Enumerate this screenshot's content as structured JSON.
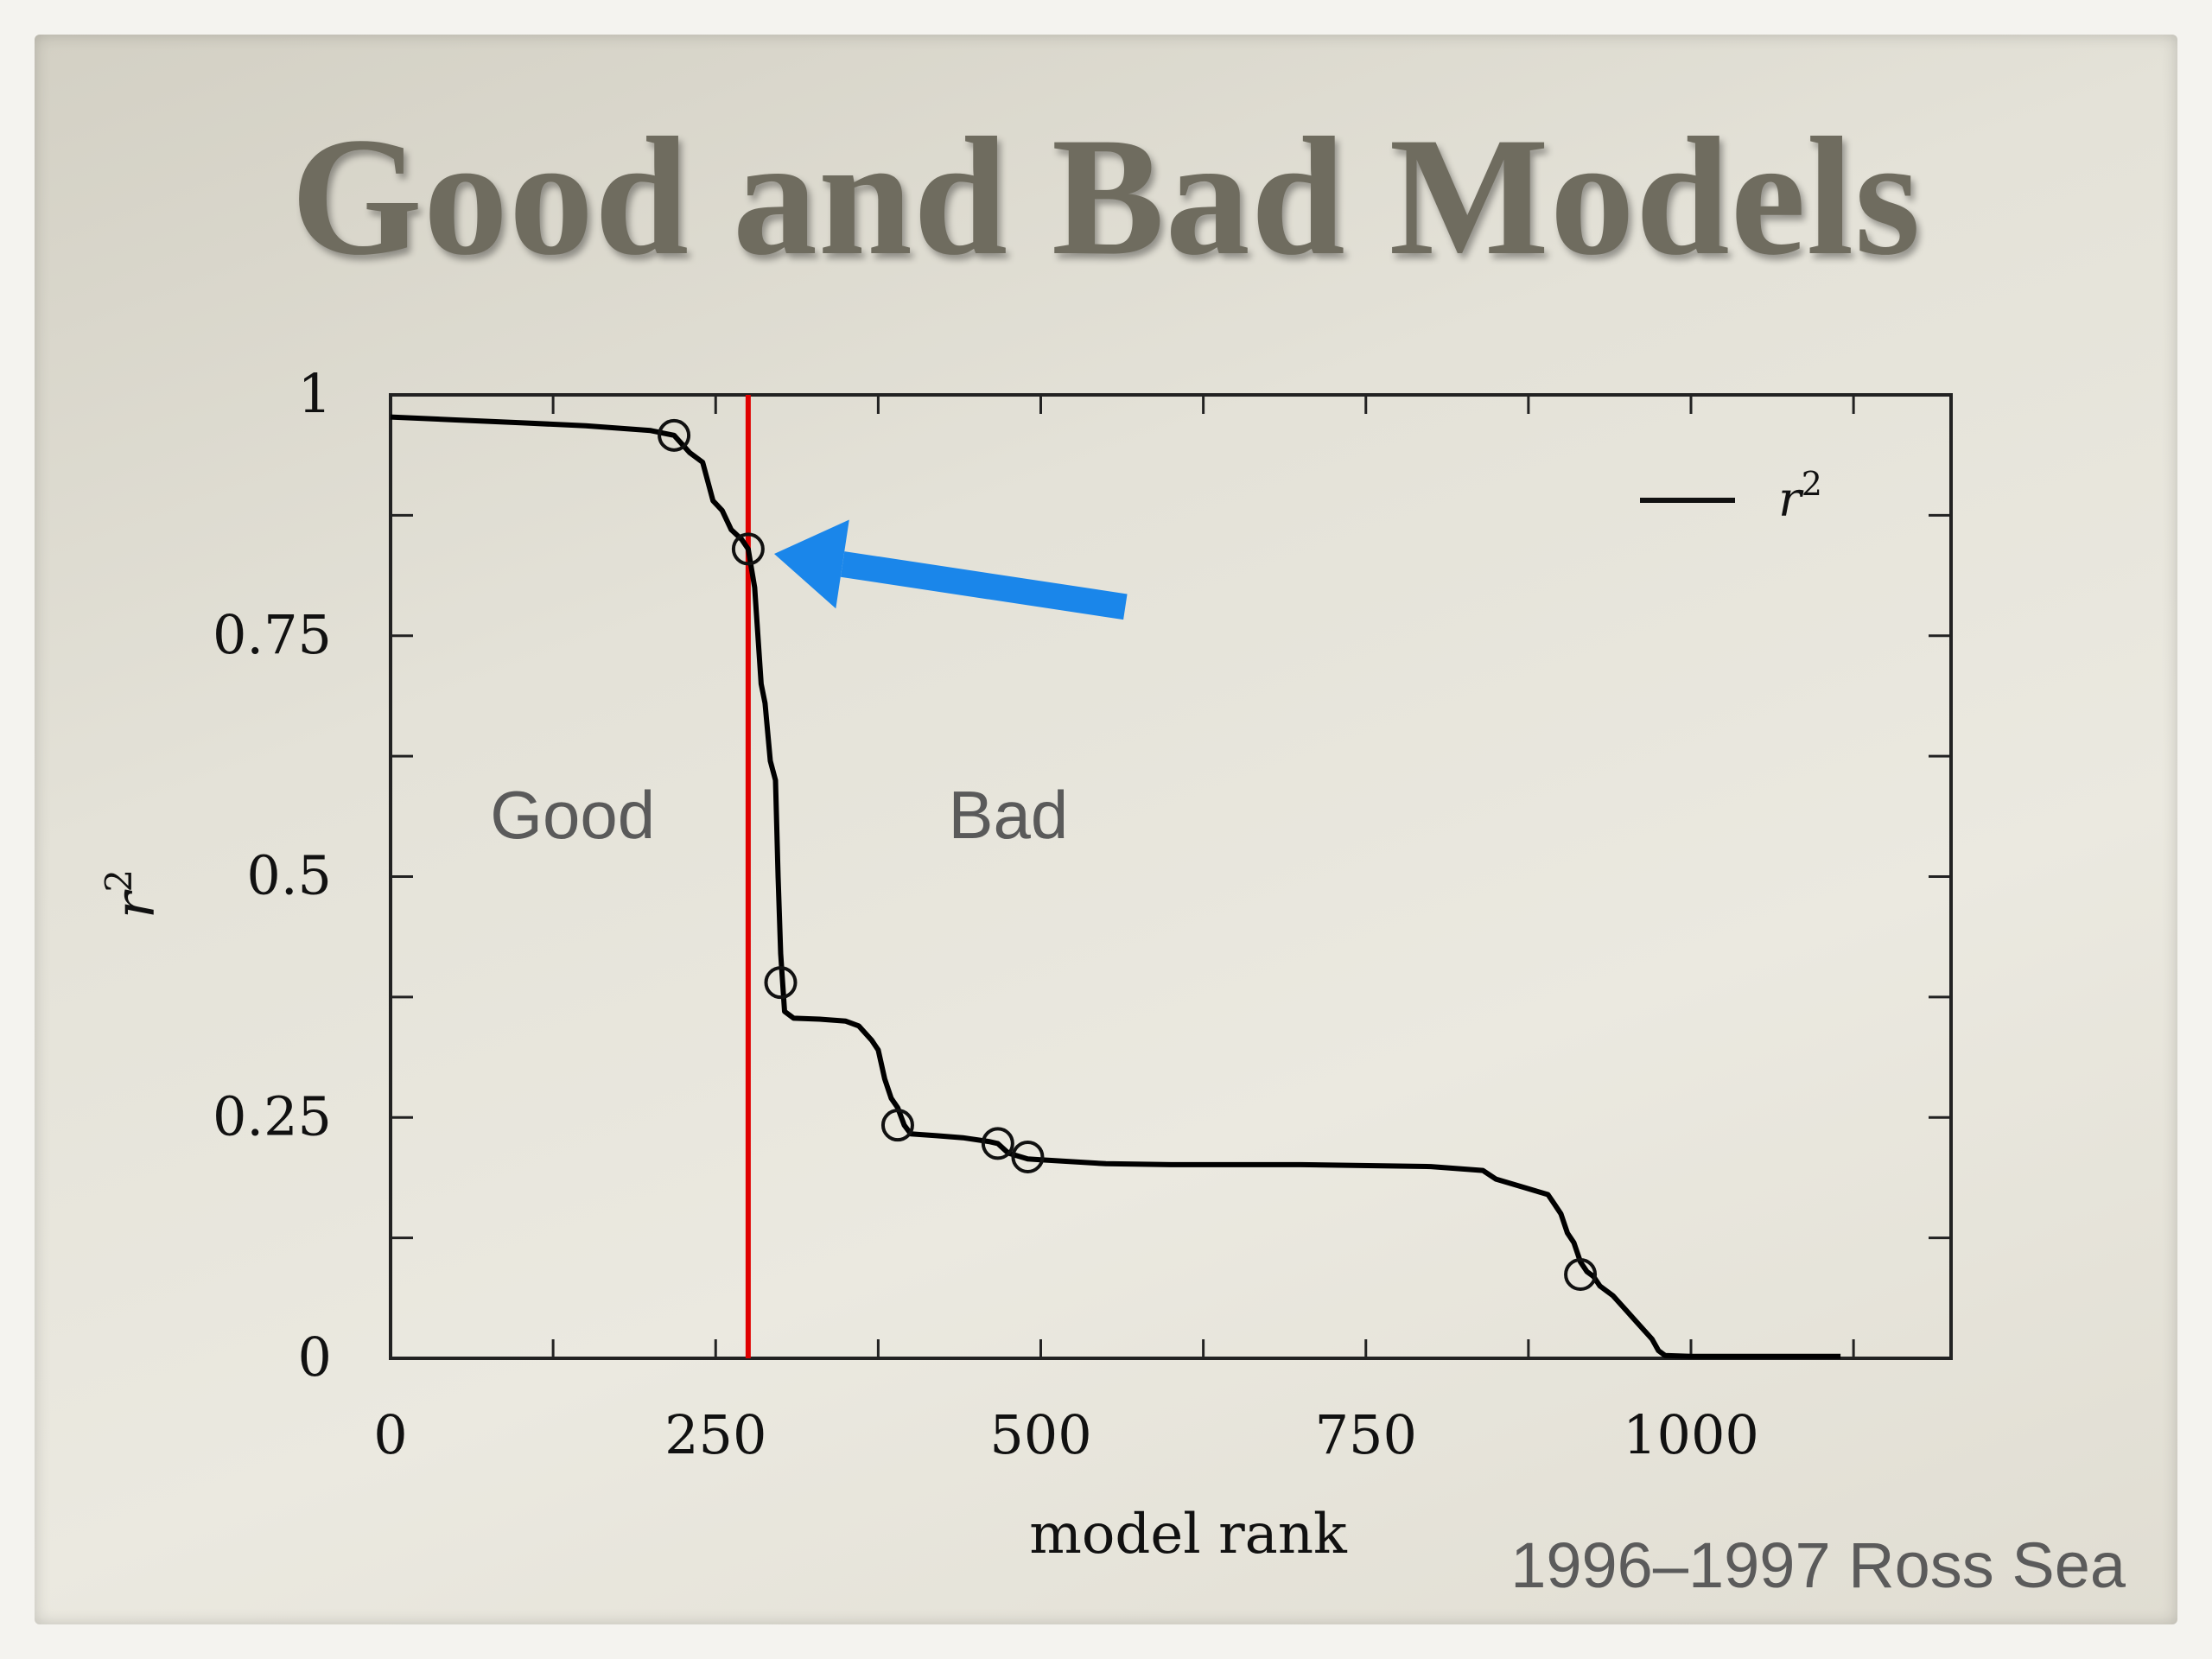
{
  "slide": {
    "title": "Good and Bad Models",
    "caption": "1996–1997 Ross Sea"
  },
  "chart_data": {
    "type": "line",
    "xlabel": "model rank",
    "ylabel": "r",
    "ylabel_superscript": "2",
    "xlim": [
      0,
      1200
    ],
    "ylim": [
      0,
      1
    ],
    "x_ticks": [
      0,
      250,
      500,
      750,
      1000
    ],
    "x_tick_labels": [
      "0",
      "250",
      "500",
      "750",
      "1000"
    ],
    "y_ticks": [
      0,
      0.25,
      0.5,
      0.75,
      1
    ],
    "y_tick_labels": [
      "0",
      "0.25",
      "0.5",
      "0.75",
      "1"
    ],
    "legend": {
      "position": "top-right",
      "entries": [
        {
          "label": "r",
          "superscript": "2"
        }
      ]
    },
    "series": [
      {
        "name": "r",
        "color": "#000000",
        "x": [
          0,
          50,
          100,
          150,
          200,
          218,
          230,
          240,
          248,
          255,
          262,
          270,
          275,
          280,
          285,
          288,
          292,
          296,
          298,
          300,
          303,
          310,
          330,
          350,
          360,
          370,
          375,
          380,
          385,
          390,
          395,
          400,
          420,
          440,
          460,
          467,
          475,
          485,
          490,
          500,
          550,
          600,
          700,
          800,
          840,
          850,
          870,
          880,
          890,
          895,
          900,
          905,
          910,
          915,
          920,
          925,
          930,
          940,
          950,
          960,
          970,
          975,
          980,
          1000,
          1050,
          1100,
          1115
        ],
        "y": [
          0.977,
          0.974,
          0.971,
          0.968,
          0.963,
          0.958,
          0.94,
          0.93,
          0.89,
          0.88,
          0.86,
          0.85,
          0.84,
          0.8,
          0.7,
          0.68,
          0.62,
          0.6,
          0.5,
          0.42,
          0.36,
          0.353,
          0.352,
          0.35,
          0.345,
          0.33,
          0.32,
          0.29,
          0.27,
          0.26,
          0.242,
          0.233,
          0.231,
          0.229,
          0.225,
          0.223,
          0.213,
          0.209,
          0.207,
          0.206,
          0.202,
          0.201,
          0.201,
          0.199,
          0.195,
          0.186,
          0.178,
          0.174,
          0.17,
          0.16,
          0.15,
          0.13,
          0.12,
          0.1,
          0.09,
          0.085,
          0.075,
          0.065,
          0.05,
          0.035,
          0.02,
          0.008,
          0.003,
          0.002,
          0.002,
          0.002,
          0.002
        ]
      }
    ],
    "markers": [
      {
        "x": 218,
        "y": 0.958
      },
      {
        "x": 275,
        "y": 0.84
      },
      {
        "x": 300,
        "y": 0.39
      },
      {
        "x": 390,
        "y": 0.242
      },
      {
        "x": 467,
        "y": 0.223
      },
      {
        "x": 490,
        "y": 0.209
      },
      {
        "x": 915,
        "y": 0.087
      }
    ],
    "threshold_line": {
      "x": 275,
      "color": "#e00000"
    },
    "annotations": [
      {
        "text": "Good",
        "x": 140,
        "y": 0.54
      },
      {
        "text": "Bad",
        "x": 475,
        "y": 0.54
      }
    ],
    "arrow": {
      "from": [
        565,
        0.78
      ],
      "to": [
        295,
        0.835
      ],
      "color": "#1a86ea"
    }
  }
}
